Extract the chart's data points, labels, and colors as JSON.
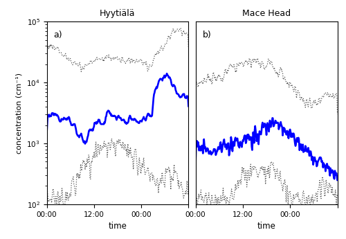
{
  "title_left": "Hyytiälä",
  "title_right": "Mace Head",
  "xlabel": "time",
  "ylabel": "concentration (cm⁻¹)",
  "label_a": "a)",
  "label_b": "b)",
  "ylim": [
    100.0,
    100000.0
  ],
  "background": "#ffffff"
}
